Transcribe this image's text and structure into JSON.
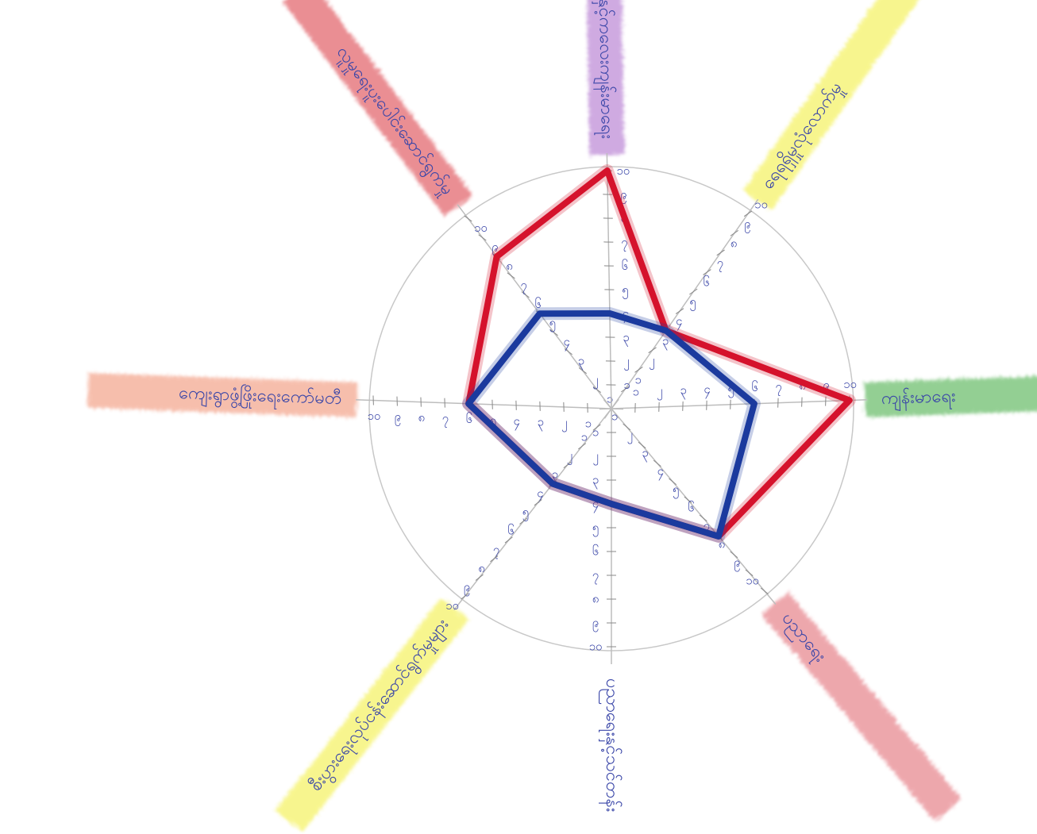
{
  "chart_data": {
    "type": "radar",
    "categories": [
      "ကျန်းမာရေး",
      "ရေရရှိမှုလုံလောက်မှု",
      "မိခင်နှင့်ကလေးကျန်းမာရေး",
      "လူမှုရေးပူးပေါင်းဆောင်ရွက်မှု",
      "ကျေးရွာဖွံ့ဖြိုးရေးကော်မတီ",
      "စီးပွားရေးလုပ်ငန်းဆောင်ရွက်မှုများ",
      "ပညာရေးနှင့်သင်တန်း",
      "ပညာရေး"
    ],
    "series": [
      {
        "color": "#d5122c",
        "values": [
          10,
          4,
          10,
          8,
          6,
          4,
          4,
          7
        ]
      },
      {
        "color": "#1b3a9e",
        "values": [
          6,
          4,
          4,
          5,
          6,
          4,
          4,
          7
        ]
      }
    ],
    "rlim": [
      0,
      10
    ],
    "rticks": [
      {
        "value": 1,
        "label": "၁"
      },
      {
        "value": 2,
        "label": "၂"
      },
      {
        "value": 3,
        "label": "၃"
      },
      {
        "value": 4,
        "label": "၄"
      },
      {
        "value": 5,
        "label": "၅"
      },
      {
        "value": 6,
        "label": "၆"
      },
      {
        "value": 7,
        "label": "၇"
      },
      {
        "value": 8,
        "label": "၈"
      },
      {
        "value": 9,
        "label": "၉"
      },
      {
        "value": 10,
        "label": "၁၀"
      }
    ]
  }
}
